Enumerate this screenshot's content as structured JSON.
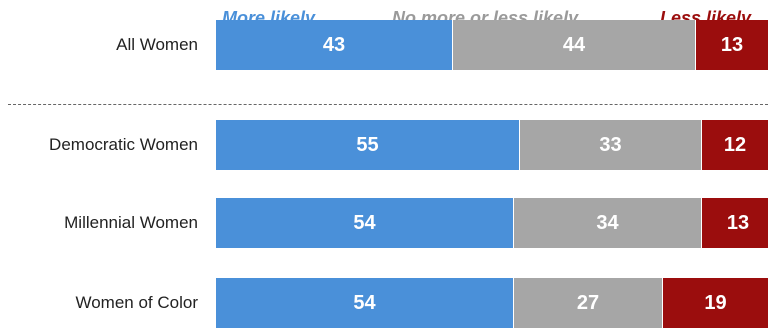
{
  "chart_data": {
    "type": "bar",
    "orientation": "horizontal",
    "stacked": true,
    "categories": [
      "All Women",
      "Democratic Women",
      "Millennial Women",
      "Women of Color"
    ],
    "series": [
      {
        "name": "More likely",
        "color": "#4a90d9",
        "values": [
          43,
          55,
          54,
          54
        ]
      },
      {
        "name": "No more or less likely",
        "color": "#a6a6a6",
        "values": [
          44,
          33,
          34,
          27
        ]
      },
      {
        "name": "Less likely",
        "color": "#9b0d0d",
        "values": [
          13,
          12,
          13,
          19
        ]
      }
    ],
    "xlim": [
      0,
      100
    ],
    "legend": "top",
    "grid": false,
    "separator_after_first_row": true
  }
}
